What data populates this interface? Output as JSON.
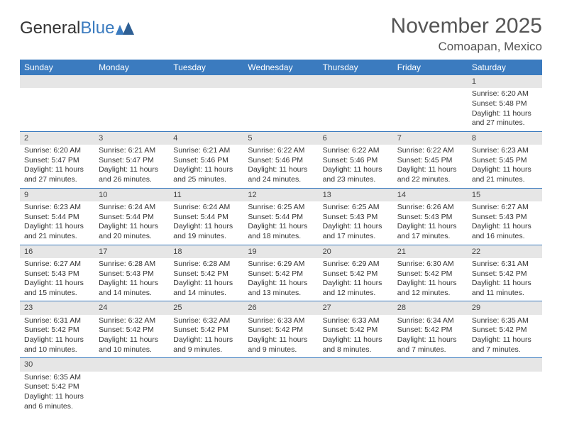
{
  "logo": {
    "text1": "General",
    "text2": "Blue"
  },
  "title": "November 2025",
  "location": "Comoapan, Mexico",
  "colors": {
    "header_bg": "#3b7bbf",
    "header_text": "#ffffff",
    "daynum_bg": "#e6e6e6",
    "border": "#3b7bbf",
    "text": "#333333",
    "background": "#ffffff"
  },
  "day_headers": [
    "Sunday",
    "Monday",
    "Tuesday",
    "Wednesday",
    "Thursday",
    "Friday",
    "Saturday"
  ],
  "weeks": [
    [
      {
        "n": "",
        "sr": "",
        "ss": "",
        "dl": ""
      },
      {
        "n": "",
        "sr": "",
        "ss": "",
        "dl": ""
      },
      {
        "n": "",
        "sr": "",
        "ss": "",
        "dl": ""
      },
      {
        "n": "",
        "sr": "",
        "ss": "",
        "dl": ""
      },
      {
        "n": "",
        "sr": "",
        "ss": "",
        "dl": ""
      },
      {
        "n": "",
        "sr": "",
        "ss": "",
        "dl": ""
      },
      {
        "n": "1",
        "sr": "Sunrise: 6:20 AM",
        "ss": "Sunset: 5:48 PM",
        "dl": "Daylight: 11 hours and 27 minutes."
      }
    ],
    [
      {
        "n": "2",
        "sr": "Sunrise: 6:20 AM",
        "ss": "Sunset: 5:47 PM",
        "dl": "Daylight: 11 hours and 27 minutes."
      },
      {
        "n": "3",
        "sr": "Sunrise: 6:21 AM",
        "ss": "Sunset: 5:47 PM",
        "dl": "Daylight: 11 hours and 26 minutes."
      },
      {
        "n": "4",
        "sr": "Sunrise: 6:21 AM",
        "ss": "Sunset: 5:46 PM",
        "dl": "Daylight: 11 hours and 25 minutes."
      },
      {
        "n": "5",
        "sr": "Sunrise: 6:22 AM",
        "ss": "Sunset: 5:46 PM",
        "dl": "Daylight: 11 hours and 24 minutes."
      },
      {
        "n": "6",
        "sr": "Sunrise: 6:22 AM",
        "ss": "Sunset: 5:46 PM",
        "dl": "Daylight: 11 hours and 23 minutes."
      },
      {
        "n": "7",
        "sr": "Sunrise: 6:22 AM",
        "ss": "Sunset: 5:45 PM",
        "dl": "Daylight: 11 hours and 22 minutes."
      },
      {
        "n": "8",
        "sr": "Sunrise: 6:23 AM",
        "ss": "Sunset: 5:45 PM",
        "dl": "Daylight: 11 hours and 21 minutes."
      }
    ],
    [
      {
        "n": "9",
        "sr": "Sunrise: 6:23 AM",
        "ss": "Sunset: 5:44 PM",
        "dl": "Daylight: 11 hours and 21 minutes."
      },
      {
        "n": "10",
        "sr": "Sunrise: 6:24 AM",
        "ss": "Sunset: 5:44 PM",
        "dl": "Daylight: 11 hours and 20 minutes."
      },
      {
        "n": "11",
        "sr": "Sunrise: 6:24 AM",
        "ss": "Sunset: 5:44 PM",
        "dl": "Daylight: 11 hours and 19 minutes."
      },
      {
        "n": "12",
        "sr": "Sunrise: 6:25 AM",
        "ss": "Sunset: 5:44 PM",
        "dl": "Daylight: 11 hours and 18 minutes."
      },
      {
        "n": "13",
        "sr": "Sunrise: 6:25 AM",
        "ss": "Sunset: 5:43 PM",
        "dl": "Daylight: 11 hours and 17 minutes."
      },
      {
        "n": "14",
        "sr": "Sunrise: 6:26 AM",
        "ss": "Sunset: 5:43 PM",
        "dl": "Daylight: 11 hours and 17 minutes."
      },
      {
        "n": "15",
        "sr": "Sunrise: 6:27 AM",
        "ss": "Sunset: 5:43 PM",
        "dl": "Daylight: 11 hours and 16 minutes."
      }
    ],
    [
      {
        "n": "16",
        "sr": "Sunrise: 6:27 AM",
        "ss": "Sunset: 5:43 PM",
        "dl": "Daylight: 11 hours and 15 minutes."
      },
      {
        "n": "17",
        "sr": "Sunrise: 6:28 AM",
        "ss": "Sunset: 5:43 PM",
        "dl": "Daylight: 11 hours and 14 minutes."
      },
      {
        "n": "18",
        "sr": "Sunrise: 6:28 AM",
        "ss": "Sunset: 5:42 PM",
        "dl": "Daylight: 11 hours and 14 minutes."
      },
      {
        "n": "19",
        "sr": "Sunrise: 6:29 AM",
        "ss": "Sunset: 5:42 PM",
        "dl": "Daylight: 11 hours and 13 minutes."
      },
      {
        "n": "20",
        "sr": "Sunrise: 6:29 AM",
        "ss": "Sunset: 5:42 PM",
        "dl": "Daylight: 11 hours and 12 minutes."
      },
      {
        "n": "21",
        "sr": "Sunrise: 6:30 AM",
        "ss": "Sunset: 5:42 PM",
        "dl": "Daylight: 11 hours and 12 minutes."
      },
      {
        "n": "22",
        "sr": "Sunrise: 6:31 AM",
        "ss": "Sunset: 5:42 PM",
        "dl": "Daylight: 11 hours and 11 minutes."
      }
    ],
    [
      {
        "n": "23",
        "sr": "Sunrise: 6:31 AM",
        "ss": "Sunset: 5:42 PM",
        "dl": "Daylight: 11 hours and 10 minutes."
      },
      {
        "n": "24",
        "sr": "Sunrise: 6:32 AM",
        "ss": "Sunset: 5:42 PM",
        "dl": "Daylight: 11 hours and 10 minutes."
      },
      {
        "n": "25",
        "sr": "Sunrise: 6:32 AM",
        "ss": "Sunset: 5:42 PM",
        "dl": "Daylight: 11 hours and 9 minutes."
      },
      {
        "n": "26",
        "sr": "Sunrise: 6:33 AM",
        "ss": "Sunset: 5:42 PM",
        "dl": "Daylight: 11 hours and 9 minutes."
      },
      {
        "n": "27",
        "sr": "Sunrise: 6:33 AM",
        "ss": "Sunset: 5:42 PM",
        "dl": "Daylight: 11 hours and 8 minutes."
      },
      {
        "n": "28",
        "sr": "Sunrise: 6:34 AM",
        "ss": "Sunset: 5:42 PM",
        "dl": "Daylight: 11 hours and 7 minutes."
      },
      {
        "n": "29",
        "sr": "Sunrise: 6:35 AM",
        "ss": "Sunset: 5:42 PM",
        "dl": "Daylight: 11 hours and 7 minutes."
      }
    ],
    [
      {
        "n": "30",
        "sr": "Sunrise: 6:35 AM",
        "ss": "Sunset: 5:42 PM",
        "dl": "Daylight: 11 hours and 6 minutes."
      },
      {
        "n": "",
        "sr": "",
        "ss": "",
        "dl": ""
      },
      {
        "n": "",
        "sr": "",
        "ss": "",
        "dl": ""
      },
      {
        "n": "",
        "sr": "",
        "ss": "",
        "dl": ""
      },
      {
        "n": "",
        "sr": "",
        "ss": "",
        "dl": ""
      },
      {
        "n": "",
        "sr": "",
        "ss": "",
        "dl": ""
      },
      {
        "n": "",
        "sr": "",
        "ss": "",
        "dl": ""
      }
    ]
  ]
}
